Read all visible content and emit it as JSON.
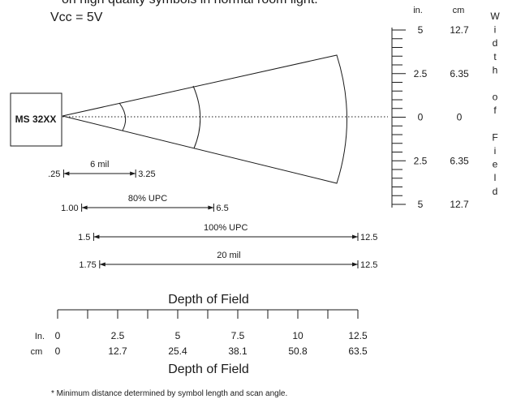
{
  "header": {
    "line1": "on high quality symbols in normal room light.",
    "line2": "Vcc = 5V"
  },
  "scanner": {
    "label": "MS 32XX"
  },
  "width_scale": {
    "header_in": "in.",
    "header_cm": "cm",
    "rows": [
      {
        "in": "5",
        "cm": "12.7"
      },
      {
        "in": "2.5",
        "cm": "6.35"
      },
      {
        "in": "0",
        "cm": "0"
      },
      {
        "in": "2.5",
        "cm": "6.35"
      },
      {
        "in": "5",
        "cm": "12.7"
      }
    ],
    "title_letters": [
      "W",
      "i",
      "d",
      "t",
      "h",
      "",
      "o",
      "f",
      "",
      "F",
      "i",
      "e",
      "l",
      "d"
    ]
  },
  "ranges": [
    {
      "name": "6 mil",
      "start": 0.25,
      "end": 3.25,
      "start_label": ".25",
      "end_label": "3.25"
    },
    {
      "name": "80% UPC",
      "start": 1.0,
      "end": 6.5,
      "start_label": "1.00",
      "end_label": "6.5"
    },
    {
      "name": "100% UPC",
      "start": 1.5,
      "end": 12.5,
      "start_label": "1.5",
      "end_label": "12.5"
    },
    {
      "name": "20 mil",
      "start": 1.75,
      "end": 12.5,
      "start_label": "1.75",
      "end_label": "12.5"
    }
  ],
  "depth_axis": {
    "title_top": "Depth of Field",
    "title_bottom": "Depth of Field",
    "unit_in": "In.",
    "unit_cm": "cm",
    "in_ticks": [
      "0",
      "2.5",
      "5",
      "7.5",
      "10",
      "12.5"
    ],
    "cm_ticks": [
      "0",
      "12.7",
      "25.4",
      "38.1",
      "50.8",
      "63.5"
    ]
  },
  "footnote": "* Minimum distance determined by symbol length and scan angle."
}
